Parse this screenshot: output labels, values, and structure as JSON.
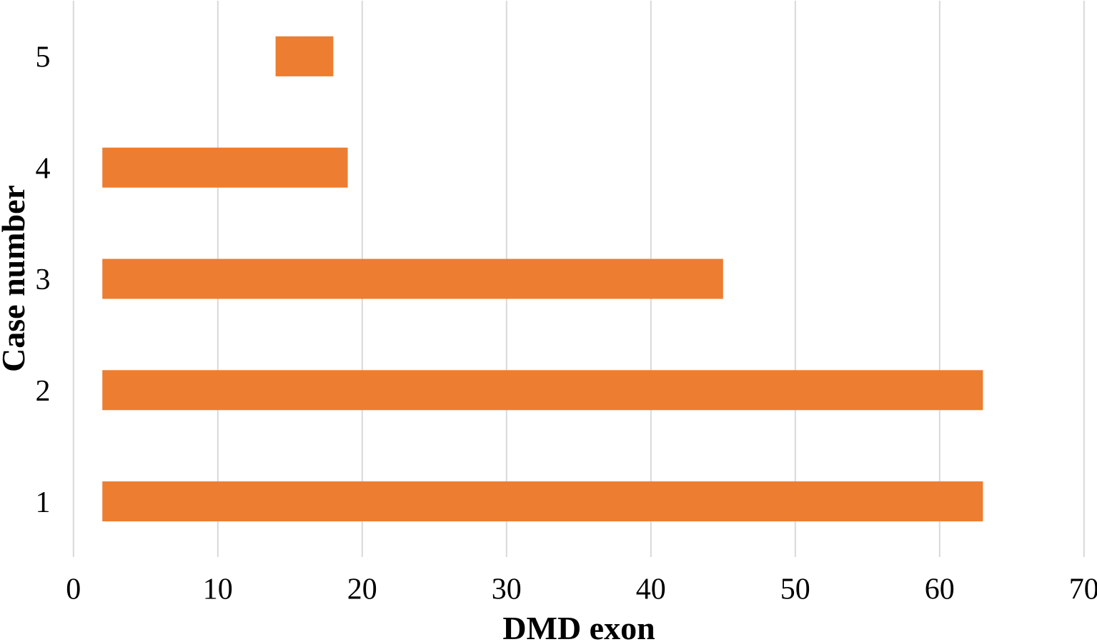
{
  "chart_data": {
    "type": "bar",
    "orientation": "horizontal",
    "title": "",
    "xlabel": "DMD exon",
    "ylabel": "Case number",
    "categories": [
      "5",
      "4",
      "3",
      "2",
      "1"
    ],
    "bars": [
      {
        "category": "5",
        "start": 14,
        "end": 18
      },
      {
        "category": "4",
        "start": 2,
        "end": 19
      },
      {
        "category": "3",
        "start": 2,
        "end": 45
      },
      {
        "category": "2",
        "start": 2,
        "end": 63
      },
      {
        "category": "1",
        "start": 2,
        "end": 63
      }
    ],
    "x_ticks": [
      0,
      10,
      20,
      30,
      40,
      50,
      60,
      70
    ],
    "xlim": [
      0,
      70
    ],
    "grid": true,
    "legend": false,
    "colors": {
      "bar": "#ED7D31",
      "gridline": "#D9D9D9",
      "text": "#000000",
      "background": "#FFFFFF"
    }
  }
}
